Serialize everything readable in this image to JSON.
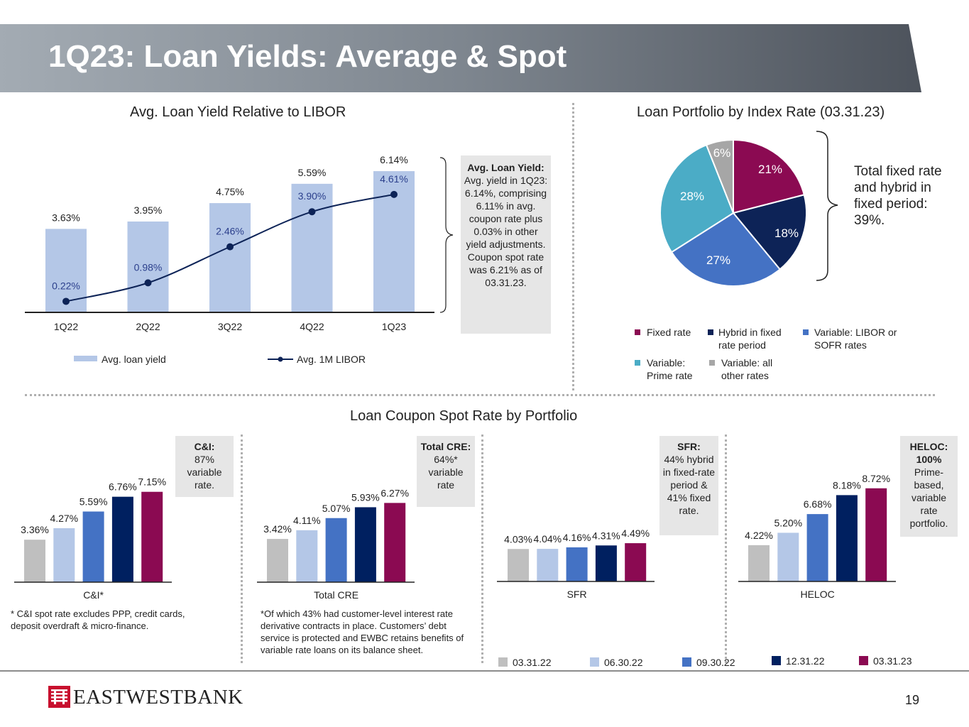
{
  "page_title": "1Q23: Loan Yields: Average & Spot",
  "page_number": "19",
  "logo_text": "EASTWESTBANK",
  "colors": {
    "yield_bar": "#b4c7e7",
    "libor_line": "#0d2357",
    "c_0331_22": "#bfbfbf",
    "c_0630_22": "#b4c7e7",
    "c_0930_22": "#4472c4",
    "c_1231_22": "#002060",
    "c_0331_23": "#8b0a52",
    "pie_fixed": "#8b0a52",
    "pie_hybrid": "#0d2357",
    "pie_libor": "#4472c4",
    "pie_prime": "#4bacc6",
    "pie_other": "#a6a6a6"
  },
  "yield_chart": {
    "title": "Avg. Loan Yield Relative to LIBOR",
    "legend": {
      "yield": "Avg. loan yield",
      "libor": "Avg. 1M LIBOR"
    },
    "note": {
      "heading": "Avg. Loan Yield:",
      "body": "Avg. yield in 1Q23: 6.14%, comprising 6.11% in avg. coupon rate plus 0.03% in other yield adjustments. Coupon spot rate was 6.21% as of 03.31.23."
    }
  },
  "pie_chart": {
    "title": "Loan Portfolio by Index Rate (03.31.23)",
    "brace_text": "Total fixed rate and hybrid in fixed period: 39%.",
    "legend": {
      "fixed": "Fixed rate",
      "hybrid": "Hybrid in fixed rate period",
      "libor": "Variable: LIBOR or SOFR rates",
      "prime": "Variable: Prime rate",
      "other": "Variable: all other rates"
    }
  },
  "spot_section": {
    "title": "Loan Coupon Spot Rate by Portfolio",
    "legend": [
      "03.31.22",
      "06.30.22",
      "09.30.22",
      "12.31.22",
      "03.31.23"
    ],
    "ci": {
      "note_heading": "C&I:",
      "note_body": "87% variable rate.",
      "footnote": "* C&I spot rate excludes PPP, credit cards, deposit overdraft & micro-finance."
    },
    "cre": {
      "note_heading": "Total CRE:",
      "note_body": "64%* variable rate",
      "footnote": "*Of which 43% had customer-level interest rate derivative contracts in place. Customers’ debt service is protected and EWBC retains benefits of variable rate loans on its balance sheet."
    },
    "sfr": {
      "note_heading": "SFR:",
      "note_body": "44% hybrid in fixed-rate period & 41% fixed rate."
    },
    "heloc": {
      "note_heading": "HELOC: 100%",
      "note_body": "Prime-based, variable rate portfolio."
    }
  },
  "chart_data": [
    {
      "type": "bar",
      "title": "Avg. Loan Yield Relative to LIBOR",
      "categories": [
        "1Q22",
        "2Q22",
        "3Q22",
        "4Q22",
        "1Q23"
      ],
      "series": [
        {
          "name": "Avg. loan yield",
          "type": "bar",
          "values": [
            3.63,
            3.95,
            4.75,
            5.59,
            6.14
          ],
          "labels": [
            "3.63%",
            "3.95%",
            "4.75%",
            "5.59%",
            "6.14%"
          ]
        },
        {
          "name": "Avg. 1M LIBOR",
          "type": "line",
          "values": [
            0.22,
            0.98,
            2.46,
            3.9,
            4.61
          ],
          "labels": [
            "0.22%",
            "0.98%",
            "2.46%",
            "3.90%",
            "4.61%"
          ]
        }
      ],
      "ylim": [
        0,
        7.5
      ]
    },
    {
      "type": "pie",
      "title": "Loan Portfolio by Index Rate (03.31.23)",
      "categories": [
        "Fixed rate",
        "Hybrid in fixed rate period",
        "Variable: LIBOR or SOFR rates",
        "Variable: Prime rate",
        "Variable: all other rates"
      ],
      "values": [
        21,
        18,
        27,
        28,
        6
      ],
      "labels": [
        "21%",
        "18%",
        "27%",
        "28%",
        "6%"
      ]
    },
    {
      "type": "bar",
      "title": "Loan Coupon Spot Rate by Portfolio",
      "series_names": [
        "03.31.22",
        "06.30.22",
        "09.30.22",
        "12.31.22",
        "03.31.23"
      ],
      "groups": [
        {
          "name": "C&I*",
          "values": [
            3.36,
            4.27,
            5.59,
            6.76,
            7.15
          ],
          "labels": [
            "3.36%",
            "4.27%",
            "5.59%",
            "6.76%",
            "7.15%"
          ]
        },
        {
          "name": "Total CRE",
          "values": [
            3.42,
            4.11,
            5.07,
            5.93,
            6.27
          ],
          "labels": [
            "3.42%",
            "4.11%",
            "5.07%",
            "5.93%",
            "6.27%"
          ]
        },
        {
          "name": "SFR",
          "values": [
            4.03,
            4.04,
            4.16,
            4.31,
            4.49
          ],
          "labels": [
            "4.03%",
            "4.04%",
            "4.16%",
            "4.31%",
            "4.49%"
          ]
        },
        {
          "name": "HELOC",
          "values": [
            4.22,
            5.2,
            6.68,
            8.18,
            8.72
          ],
          "labels": [
            "4.22%",
            "5.20%",
            "6.68%",
            "8.18%",
            "8.72%"
          ]
        }
      ]
    }
  ]
}
